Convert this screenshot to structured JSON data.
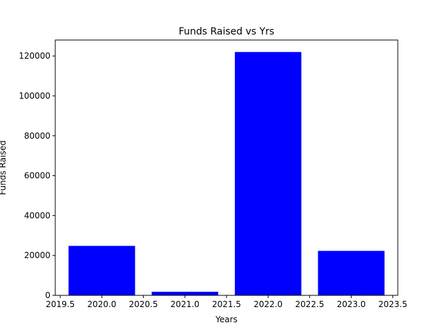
{
  "chart_data": {
    "type": "bar",
    "title": "Funds Raised vs Yrs",
    "xlabel": "Years",
    "ylabel": "Funds Raised",
    "x": [
      2020,
      2021,
      2022,
      2023
    ],
    "values": [
      24800,
      1800,
      122000,
      22300
    ],
    "bar_width": 0.8,
    "xlim": [
      2019.44,
      2023.56
    ],
    "ylim": [
      0,
      128000
    ],
    "xticks": [
      2019.5,
      2020.0,
      2020.5,
      2021.0,
      2021.5,
      2022.0,
      2022.5,
      2023.0,
      2023.5
    ],
    "xtick_labels": [
      "2019.5",
      "2020.0",
      "2020.5",
      "2021.0",
      "2021.5",
      "2022.0",
      "2022.5",
      "2023.0",
      "2023.5"
    ],
    "yticks": [
      0,
      20000,
      40000,
      60000,
      80000,
      100000,
      120000
    ],
    "ytick_labels": [
      "0",
      "20000",
      "40000",
      "60000",
      "80000",
      "100000",
      "120000"
    ],
    "bar_color": "#0000ff",
    "grid": false,
    "legend": null
  }
}
